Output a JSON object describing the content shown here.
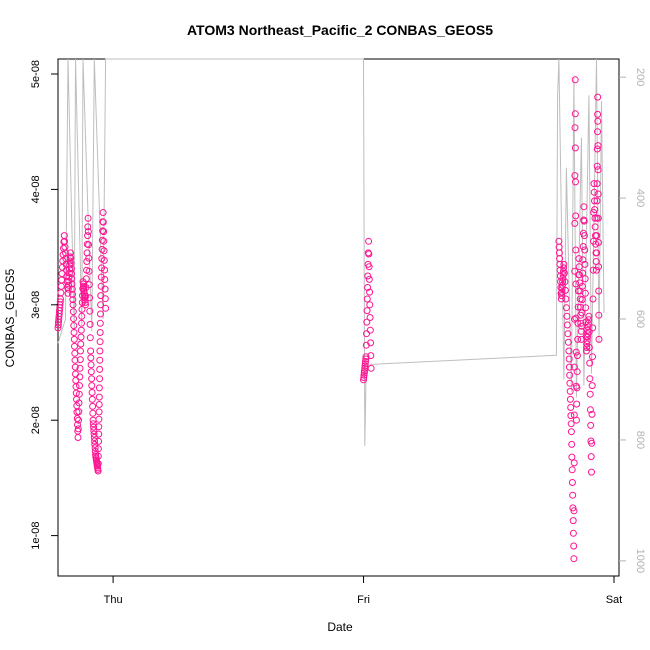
{
  "chart_data": {
    "type": "scatter",
    "title": "ATOM3 Northeast_Pacific_2 CONBAS_GEOS5",
    "xlabel": "Date",
    "ylabel": "CONBAS_GEOS5",
    "x_ticks": [
      "Thu",
      "Fri",
      "Sat"
    ],
    "y_ticks": [
      "1e-08",
      "2e-08",
      "3e-08",
      "4e-08",
      "5e-08"
    ],
    "y2_ticks": [
      "200",
      "400",
      "600",
      "800",
      "1000"
    ],
    "xlim_days": [
      -0.22,
      2.02
    ],
    "ylim": [
      6.5e-09,
      5.13e-08
    ],
    "y2lim": [
      1025,
      170
    ],
    "grid": false,
    "colors": {
      "points": "#ff1493",
      "altitude_line": "#bebebe"
    },
    "series": [
      {
        "type": "scatter",
        "axis": "left",
        "segments": [
          {
            "x": -0.22,
            "y": 2.8e-08
          },
          {
            "x": -0.21,
            "y": 3.05e-08
          },
          {
            "x": -0.195,
            "y": 3.6e-08
          },
          {
            "x": -0.18,
            "y": 3.1e-08
          },
          {
            "x": -0.17,
            "y": 3.45e-08
          },
          {
            "x": -0.16,
            "y": 3e-08
          },
          {
            "x": -0.15,
            "y": 2.4e-08
          },
          {
            "x": -0.14,
            "y": 1.85e-08
          },
          {
            "x": -0.13,
            "y": 2.6e-08
          },
          {
            "x": -0.12,
            "y": 3.2e-08
          },
          {
            "x": -0.11,
            "y": 3e-08
          },
          {
            "x": -0.1,
            "y": 3.75e-08
          },
          {
            "x": -0.09,
            "y": 2.6e-08
          },
          {
            "x": -0.08,
            "y": 2e-08
          },
          {
            "x": -0.07,
            "y": 1.7e-08
          },
          {
            "x": -0.06,
            "y": 1.56e-08
          },
          {
            "x": -0.055,
            "y": 2.2e-08
          },
          {
            "x": -0.05,
            "y": 3e-08
          },
          {
            "x": -0.04,
            "y": 3.8e-08
          },
          {
            "x": -0.03,
            "y": 2.97e-08
          },
          {
            "x": 1.0,
            "y": 2.35e-08
          },
          {
            "x": 1.01,
            "y": 2.55e-08
          },
          {
            "x": 1.02,
            "y": 3.55e-08
          },
          {
            "x": 1.03,
            "y": 2.45e-08
          },
          {
            "x": 1.78,
            "y": 3.55e-08
          },
          {
            "x": 1.79,
            "y": 3.05e-08
          },
          {
            "x": 1.8,
            "y": 3.35e-08
          },
          {
            "x": 1.82,
            "y": 2.6e-08
          },
          {
            "x": 1.83,
            "y": 1.9e-08
          },
          {
            "x": 1.84,
            "y": 8e-09
          },
          {
            "x": 1.845,
            "y": 4.95e-08
          },
          {
            "x": 1.85,
            "y": 2e-08
          },
          {
            "x": 1.86,
            "y": 3.4e-08
          },
          {
            "x": 1.87,
            "y": 2.7e-08
          },
          {
            "x": 1.88,
            "y": 3.85e-08
          },
          {
            "x": 1.89,
            "y": 2.6e-08
          },
          {
            "x": 1.9,
            "y": 2.9e-08
          },
          {
            "x": 1.91,
            "y": 1.55e-08
          },
          {
            "x": 1.92,
            "y": 4.05e-08
          },
          {
            "x": 1.93,
            "y": 3.3e-08
          },
          {
            "x": 1.935,
            "y": 4.8e-08
          },
          {
            "x": 1.94,
            "y": 2.7e-08
          }
        ]
      },
      {
        "type": "line",
        "axis": "right",
        "x": [
          -0.22,
          -0.19,
          -0.18,
          -0.155,
          -0.15,
          -0.125,
          -0.12,
          -0.085,
          -0.075,
          -0.04,
          -0.03,
          1.0,
          1.005,
          1.01,
          1.02,
          1.03,
          1.77,
          1.775,
          1.78,
          1.8,
          1.81,
          1.83,
          1.84,
          1.85,
          1.87,
          1.88,
          1.9,
          1.91,
          1.93,
          1.94,
          1.95,
          1.96
        ],
        "y": [
          640,
          600,
          170,
          620,
          170,
          610,
          170,
          620,
          170,
          600,
          170,
          170,
          810,
          700,
          680,
          675,
          660,
          230,
          170,
          700,
          350,
          720,
          200,
          730,
          300,
          710,
          230,
          690,
          170,
          640,
          240,
          590
        ]
      }
    ]
  }
}
